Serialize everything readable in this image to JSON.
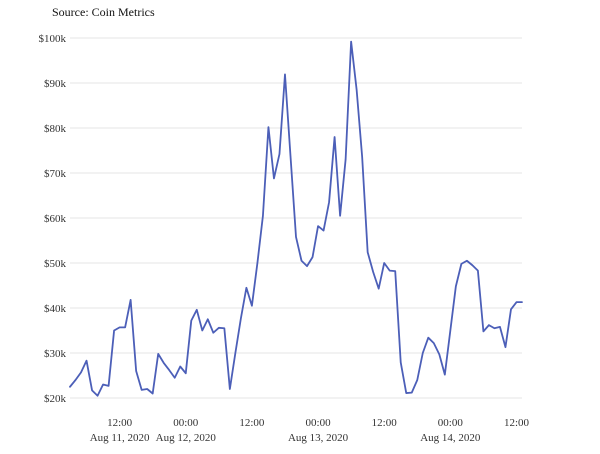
{
  "source_text": "Source: Coin Metrics",
  "colors": {
    "line": "#4c5fb8",
    "grid": "#e6e6e6",
    "text": "#333333"
  },
  "chart_data": {
    "type": "line",
    "title": "",
    "xlabel": "",
    "ylabel": "",
    "ylim": [
      20000,
      100000
    ],
    "grid": true,
    "y_ticks": [
      {
        "value": 20000,
        "label": "$20k"
      },
      {
        "value": 30000,
        "label": "$30k"
      },
      {
        "value": 40000,
        "label": "$40k"
      },
      {
        "value": 50000,
        "label": "$50k"
      },
      {
        "value": 60000,
        "label": "$60k"
      },
      {
        "value": 70000,
        "label": "$70k"
      },
      {
        "value": 80000,
        "label": "$80k"
      },
      {
        "value": 90000,
        "label": "$90k"
      },
      {
        "value": 100000,
        "label": "$100k"
      }
    ],
    "x_ticks": [
      {
        "value": "2020-08-11 12:00",
        "time": "12:00",
        "date": "Aug 11, 2020"
      },
      {
        "value": "2020-08-12 00:00",
        "time": "00:00",
        "date": "Aug 12, 2020"
      },
      {
        "value": "2020-08-12 12:00",
        "time": "12:00",
        "date": ""
      },
      {
        "value": "2020-08-13 00:00",
        "time": "00:00",
        "date": "Aug 13, 2020"
      },
      {
        "value": "2020-08-13 12:00",
        "time": "12:00",
        "date": ""
      },
      {
        "value": "2020-08-14 00:00",
        "time": "00:00",
        "date": "Aug 14, 2020"
      },
      {
        "value": "2020-08-14 12:00",
        "time": "12:00",
        "date": ""
      }
    ],
    "xlim": [
      "2020-08-11 03:00",
      "2020-08-14 13:00"
    ],
    "series": [
      {
        "name": "",
        "x": [
          "2020-08-11 03:00",
          "2020-08-11 04:00",
          "2020-08-11 05:00",
          "2020-08-11 06:00",
          "2020-08-11 07:00",
          "2020-08-11 08:00",
          "2020-08-11 09:00",
          "2020-08-11 10:00",
          "2020-08-11 11:00",
          "2020-08-11 12:00",
          "2020-08-11 13:00",
          "2020-08-11 14:00",
          "2020-08-11 15:00",
          "2020-08-11 16:00",
          "2020-08-11 17:00",
          "2020-08-11 18:00",
          "2020-08-11 19:00",
          "2020-08-11 20:00",
          "2020-08-11 21:00",
          "2020-08-11 22:00",
          "2020-08-11 23:00",
          "2020-08-12 00:00",
          "2020-08-12 01:00",
          "2020-08-12 02:00",
          "2020-08-12 03:00",
          "2020-08-12 04:00",
          "2020-08-12 05:00",
          "2020-08-12 06:00",
          "2020-08-12 07:00",
          "2020-08-12 08:00",
          "2020-08-12 09:00",
          "2020-08-12 10:00",
          "2020-08-12 11:00",
          "2020-08-12 12:00",
          "2020-08-12 13:00",
          "2020-08-12 14:00",
          "2020-08-12 15:00",
          "2020-08-12 16:00",
          "2020-08-12 17:00",
          "2020-08-12 18:00",
          "2020-08-12 19:00",
          "2020-08-12 20:00",
          "2020-08-12 21:00",
          "2020-08-12 22:00",
          "2020-08-12 23:00",
          "2020-08-13 00:00",
          "2020-08-13 01:00",
          "2020-08-13 02:00",
          "2020-08-13 03:00",
          "2020-08-13 04:00",
          "2020-08-13 05:00",
          "2020-08-13 06:00",
          "2020-08-13 07:00",
          "2020-08-13 08:00",
          "2020-08-13 09:00",
          "2020-08-13 10:00",
          "2020-08-13 11:00",
          "2020-08-13 12:00",
          "2020-08-13 13:00",
          "2020-08-13 14:00",
          "2020-08-13 15:00",
          "2020-08-13 16:00",
          "2020-08-13 17:00",
          "2020-08-13 18:00",
          "2020-08-13 19:00",
          "2020-08-13 20:00",
          "2020-08-13 21:00",
          "2020-08-13 22:00",
          "2020-08-13 23:00",
          "2020-08-14 00:00",
          "2020-08-14 01:00",
          "2020-08-14 02:00",
          "2020-08-14 03:00",
          "2020-08-14 04:00",
          "2020-08-14 05:00",
          "2020-08-14 06:00",
          "2020-08-14 07:00",
          "2020-08-14 08:00",
          "2020-08-14 09:00",
          "2020-08-14 10:00",
          "2020-08-14 11:00",
          "2020-08-14 12:00",
          "2020-08-14 13:00"
        ],
        "values": [
          22500,
          24000,
          25700,
          28300,
          21700,
          20500,
          23000,
          22700,
          35000,
          35700,
          35700,
          41800,
          26000,
          21800,
          22000,
          21000,
          29800,
          27800,
          26200,
          24500,
          27000,
          25500,
          37200,
          39600,
          35000,
          37500,
          34500,
          35600,
          35500,
          22000,
          30000,
          37700,
          44500,
          40500,
          50000,
          60500,
          80200,
          68800,
          74200,
          91900,
          73800,
          55800,
          50500,
          49300,
          51300,
          58200,
          57200,
          63500,
          78000,
          60500,
          73000,
          99200,
          88500,
          73600,
          52400,
          48000,
          44300,
          50000,
          48300,
          48200,
          27900,
          21100,
          21200,
          24000,
          30000,
          33400,
          32200,
          29700,
          25200,
          35000,
          44800,
          49800,
          50500,
          49500,
          48300,
          34800,
          36200,
          35500,
          35800,
          31300,
          39700,
          41300,
          41300
        ]
      }
    ]
  }
}
